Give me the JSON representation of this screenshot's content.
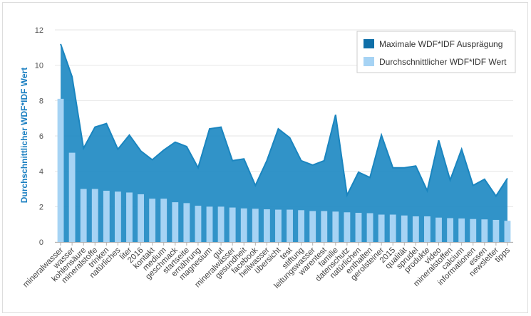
{
  "chart_data": {
    "type": "area",
    "ylabel": "Durchschnittlicher WDF*IDF Wert",
    "ylim": [
      0,
      12
    ],
    "yticks": [
      0,
      2,
      4,
      6,
      8,
      10,
      12
    ],
    "grid": true,
    "legend_position": "top-right",
    "categories": [
      "mineralwasser",
      "wasser",
      "kohlensäure",
      "mineralstoffe",
      "trinken",
      "natürliches",
      "liter",
      "2016",
      "kontakt",
      "medium",
      "geschmack",
      "startseite",
      "ernährung",
      "magnesium",
      "gut",
      "mineralwässer",
      "gesundheit",
      "facebook",
      "heilwasser",
      "übersicht",
      "test",
      "stiftung",
      "leitungswasser",
      "warentest",
      "familie",
      "datenschutz",
      "natürlichen",
      "enthalten",
      "gerolsteiner",
      "2015",
      "qualität",
      "sprudel",
      "produkte",
      "video",
      "mineralstoffen",
      "calcium",
      "informationen",
      "essen",
      "newsletter",
      "tipps"
    ],
    "series": [
      {
        "name": "Maximale WDF*IDF Ausprägung",
        "type": "area",
        "color": "#1f8ac3",
        "values": [
          11.2,
          9.35,
          5.3,
          6.5,
          6.7,
          5.25,
          6.05,
          5.15,
          4.65,
          5.2,
          5.65,
          5.4,
          4.2,
          6.4,
          6.5,
          4.6,
          4.7,
          3.2,
          4.6,
          6.4,
          5.9,
          4.6,
          4.35,
          4.6,
          7.2,
          2.65,
          3.95,
          3.65,
          6.05,
          4.2,
          4.2,
          4.3,
          2.9,
          5.75,
          3.5,
          5.25,
          3.2,
          3.55,
          2.6,
          3.6
        ]
      },
      {
        "name": "Durchschnittlicher WDF*IDF Wert",
        "type": "bar",
        "color": "#a6d3f4",
        "values": [
          8.1,
          5.05,
          3.0,
          3.0,
          2.9,
          2.85,
          2.8,
          2.7,
          2.45,
          2.45,
          2.25,
          2.2,
          2.05,
          2.0,
          2.0,
          1.95,
          1.9,
          1.88,
          1.85,
          1.83,
          1.83,
          1.8,
          1.75,
          1.75,
          1.72,
          1.68,
          1.65,
          1.63,
          1.55,
          1.55,
          1.5,
          1.45,
          1.45,
          1.38,
          1.35,
          1.33,
          1.3,
          1.28,
          1.25,
          1.2
        ]
      }
    ]
  },
  "legend": {
    "items": [
      {
        "label": "Maximale WDF*IDF Ausprägung",
        "color": "#0f6fa8"
      },
      {
        "label": "Durchschnittlicher WDF*IDF Wert",
        "color": "#a6d3f4"
      }
    ]
  }
}
